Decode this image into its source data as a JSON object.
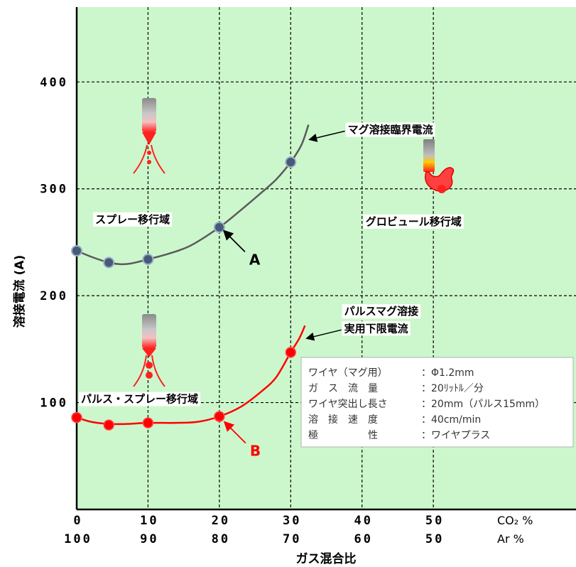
{
  "chart_data": {
    "type": "line",
    "ylabel": "溶接電流 (A)",
    "xlabel": "ガス混合比",
    "ylim": [
      0,
      470
    ],
    "xlim": [
      0,
      70
    ],
    "y_ticks": [
      {
        "value": 100,
        "label": "100"
      },
      {
        "value": 200,
        "label": "200"
      },
      {
        "value": 300,
        "label": "300"
      },
      {
        "value": 400,
        "label": "400"
      }
    ],
    "x_ticks": [
      {
        "value": 0,
        "co2": "0",
        "ar": "100"
      },
      {
        "value": 10,
        "co2": "10",
        "ar": "90"
      },
      {
        "value": 20,
        "co2": "20",
        "ar": "80"
      },
      {
        "value": 30,
        "co2": "30",
        "ar": "70"
      },
      {
        "value": 40,
        "co2": "40",
        "ar": "60"
      },
      {
        "value": 50,
        "co2": "50",
        "ar": "50"
      }
    ],
    "x_unit_top": "CO₂ %",
    "x_unit_bottom": "Ar   %",
    "grid": true,
    "series": [
      {
        "name": "A",
        "color": "#5a5a5a",
        "marker_color": "#465a78",
        "markers": [
          [
            0,
            242
          ],
          [
            4.5,
            231
          ],
          [
            10,
            234
          ],
          [
            20,
            264
          ],
          [
            30,
            325
          ]
        ],
        "curve": [
          [
            0,
            242
          ],
          [
            2.2,
            236
          ],
          [
            4.5,
            231
          ],
          [
            6,
            229.5
          ],
          [
            7.5,
            230
          ],
          [
            10,
            234
          ],
          [
            13,
            239.5
          ],
          [
            16,
            247
          ],
          [
            20,
            264
          ],
          [
            23,
            280
          ],
          [
            26,
            297
          ],
          [
            28,
            309
          ],
          [
            30,
            325
          ],
          [
            31.5,
            341
          ],
          [
            32.5,
            360
          ]
        ],
        "label": "A",
        "label_color": "#000000",
        "arrow_to": [
          20.6,
          261
        ]
      },
      {
        "name": "B",
        "color": "#ff0000",
        "marker_color": "#ff0000",
        "markers": [
          [
            0,
            86
          ],
          [
            4.5,
            79
          ],
          [
            10,
            81
          ],
          [
            20,
            87
          ],
          [
            30,
            147
          ]
        ],
        "curve": [
          [
            0,
            86
          ],
          [
            2,
            82
          ],
          [
            4.5,
            80
          ],
          [
            7,
            80
          ],
          [
            10,
            81
          ],
          [
            14,
            81
          ],
          [
            17,
            82
          ],
          [
            20,
            87
          ],
          [
            23,
            96
          ],
          [
            26,
            111
          ],
          [
            28,
            124
          ],
          [
            30,
            147
          ],
          [
            31.2,
            160
          ],
          [
            32,
            172
          ]
        ],
        "label": "B",
        "label_color": "#ff0000",
        "arrow_to": [
          20.7,
          82
        ]
      }
    ],
    "annotations": [
      {
        "text": "マグ溶接臨界電流",
        "pos": [
          38,
          352
        ],
        "arrow_to": [
          32.6,
          346
        ]
      },
      {
        "text": "スプレー移行域",
        "pos": [
          2.6,
          268
        ]
      },
      {
        "text": "グロビュール移行域",
        "pos": [
          40.5,
          266
        ]
      },
      {
        "text": "パルスマグ溶接",
        "pos": [
          37.5,
          182
        ]
      },
      {
        "text": "実用下限電流",
        "pos": [
          37.5,
          166
        ],
        "arrow_to": [
          32.2,
          160
        ]
      },
      {
        "text": "パルス・スプレー移行域",
        "pos": [
          0.6,
          100
        ]
      }
    ],
    "conditions": [
      {
        "label": "ワイヤ（マグ用）",
        "value": "：Φ1.2mm"
      },
      {
        "label": "ガ　ス　流　量",
        "value": "：20ﾘｯﾄﾙ／分"
      },
      {
        "label": "ワイヤ突出し長さ",
        "value": "：20mm（パルス15mm）"
      },
      {
        "label": "溶　接　速　度",
        "value": "：40cm/min"
      },
      {
        "label": "極　　　　　性",
        "value": "：ワイヤプラス"
      }
    ]
  }
}
